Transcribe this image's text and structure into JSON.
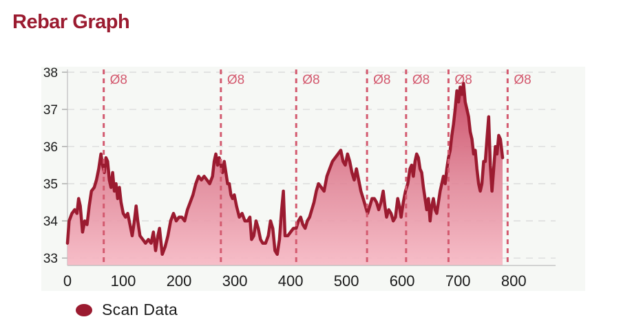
{
  "title": "Rebar Graph",
  "chart_data": {
    "type": "area",
    "xlim": [
      0,
      875
    ],
    "ylim": [
      32.8,
      38
    ],
    "yticks": [
      33,
      34,
      35,
      36,
      37,
      38
    ],
    "xticks": [
      0,
      100,
      200,
      300,
      400,
      500,
      600,
      700,
      800
    ],
    "grid": "horizontal-dashed",
    "legend_position": "bottom-left",
    "series": [
      {
        "name": "Scan Data",
        "color": "#9b1b30",
        "points": [
          [
            0,
            33.4
          ],
          [
            3,
            34.0
          ],
          [
            8,
            34.2
          ],
          [
            13,
            34.3
          ],
          [
            17,
            34.2
          ],
          [
            20,
            34.6
          ],
          [
            23,
            34.4
          ],
          [
            27,
            33.7
          ],
          [
            31,
            34.0
          ],
          [
            35,
            33.9
          ],
          [
            39,
            34.4
          ],
          [
            43,
            34.8
          ],
          [
            48,
            34.9
          ],
          [
            52,
            35.1
          ],
          [
            56,
            35.4
          ],
          [
            60,
            35.8
          ],
          [
            63,
            35.5
          ],
          [
            66,
            35.3
          ],
          [
            69,
            35.7
          ],
          [
            72,
            35.6
          ],
          [
            75,
            35.1
          ],
          [
            78,
            34.9
          ],
          [
            81,
            35.3
          ],
          [
            84,
            34.8
          ],
          [
            87,
            35.0
          ],
          [
            90,
            34.6
          ],
          [
            93,
            34.9
          ],
          [
            96,
            34.5
          ],
          [
            100,
            34.2
          ],
          [
            104,
            34.1
          ],
          [
            108,
            34.2
          ],
          [
            112,
            33.9
          ],
          [
            116,
            33.6
          ],
          [
            120,
            34.0
          ],
          [
            123,
            34.4
          ],
          [
            126,
            34.0
          ],
          [
            130,
            33.6
          ],
          [
            135,
            33.5
          ],
          [
            140,
            33.4
          ],
          [
            145,
            33.5
          ],
          [
            150,
            33.4
          ],
          [
            154,
            33.7
          ],
          [
            158,
            33.2
          ],
          [
            162,
            33.6
          ],
          [
            165,
            33.8
          ],
          [
            170,
            33.1
          ],
          [
            175,
            33.3
          ],
          [
            180,
            33.6
          ],
          [
            185,
            34.0
          ],
          [
            190,
            34.2
          ],
          [
            195,
            34.0
          ],
          [
            200,
            34.1
          ],
          [
            205,
            34.1
          ],
          [
            210,
            34.0
          ],
          [
            215,
            34.3
          ],
          [
            220,
            34.5
          ],
          [
            225,
            34.7
          ],
          [
            230,
            35.0
          ],
          [
            235,
            35.2
          ],
          [
            240,
            35.1
          ],
          [
            245,
            35.2
          ],
          [
            250,
            35.1
          ],
          [
            255,
            35.0
          ],
          [
            260,
            35.2
          ],
          [
            263,
            35.6
          ],
          [
            266,
            35.8
          ],
          [
            269,
            35.5
          ],
          [
            272,
            35.7
          ],
          [
            275,
            35.5
          ],
          [
            278,
            35.3
          ],
          [
            281,
            35.6
          ],
          [
            284,
            35.3
          ],
          [
            287,
            35.0
          ],
          [
            290,
            35.0
          ],
          [
            293,
            34.7
          ],
          [
            296,
            34.6
          ],
          [
            299,
            34.7
          ],
          [
            303,
            34.4
          ],
          [
            308,
            34.1
          ],
          [
            313,
            34.2
          ],
          [
            318,
            34.0
          ],
          [
            323,
            34.0
          ],
          [
            327,
            34.1
          ],
          [
            330,
            33.5
          ],
          [
            334,
            33.6
          ],
          [
            338,
            34.0
          ],
          [
            342,
            33.8
          ],
          [
            346,
            33.5
          ],
          [
            350,
            33.4
          ],
          [
            355,
            33.4
          ],
          [
            360,
            33.6
          ],
          [
            364,
            34.0
          ],
          [
            368,
            33.8
          ],
          [
            372,
            33.2
          ],
          [
            376,
            33.1
          ],
          [
            380,
            33.5
          ],
          [
            384,
            34.3
          ],
          [
            387,
            34.8
          ],
          [
            390,
            33.6
          ],
          [
            395,
            33.6
          ],
          [
            400,
            33.7
          ],
          [
            405,
            33.8
          ],
          [
            410,
            33.8
          ],
          [
            414,
            34.0
          ],
          [
            418,
            34.1
          ],
          [
            422,
            33.9
          ],
          [
            426,
            33.8
          ],
          [
            430,
            34.0
          ],
          [
            434,
            34.1
          ],
          [
            438,
            34.3
          ],
          [
            442,
            34.5
          ],
          [
            446,
            34.8
          ],
          [
            450,
            35.0
          ],
          [
            455,
            34.9
          ],
          [
            460,
            34.8
          ],
          [
            465,
            35.2
          ],
          [
            470,
            35.4
          ],
          [
            475,
            35.6
          ],
          [
            480,
            35.7
          ],
          [
            485,
            35.8
          ],
          [
            490,
            35.9
          ],
          [
            494,
            35.6
          ],
          [
            498,
            35.5
          ],
          [
            502,
            35.8
          ],
          [
            506,
            35.6
          ],
          [
            510,
            35.3
          ],
          [
            514,
            35.1
          ],
          [
            518,
            35.4
          ],
          [
            522,
            35.1
          ],
          [
            526,
            34.8
          ],
          [
            530,
            34.6
          ],
          [
            534,
            34.4
          ],
          [
            538,
            34.2
          ],
          [
            542,
            34.4
          ],
          [
            546,
            34.6
          ],
          [
            550,
            34.6
          ],
          [
            554,
            34.5
          ],
          [
            558,
            34.3
          ],
          [
            562,
            34.5
          ],
          [
            566,
            34.8
          ],
          [
            569,
            34.4
          ],
          [
            572,
            34.1
          ],
          [
            576,
            34.3
          ],
          [
            580,
            34.2
          ],
          [
            584,
            34.0
          ],
          [
            588,
            34.1
          ],
          [
            592,
            34.6
          ],
          [
            595,
            34.4
          ],
          [
            598,
            34.1
          ],
          [
            602,
            34.5
          ],
          [
            606,
            34.8
          ],
          [
            610,
            35.0
          ],
          [
            614,
            35.4
          ],
          [
            617,
            35.5
          ],
          [
            620,
            35.2
          ],
          [
            623,
            35.6
          ],
          [
            626,
            35.8
          ],
          [
            629,
            35.7
          ],
          [
            632,
            35.4
          ],
          [
            635,
            35.3
          ],
          [
            638,
            34.9
          ],
          [
            641,
            34.6
          ],
          [
            644,
            34.3
          ],
          [
            647,
            34.6
          ],
          [
            650,
            34.0
          ],
          [
            653,
            34.4
          ],
          [
            656,
            34.6
          ],
          [
            659,
            34.3
          ],
          [
            662,
            34.2
          ],
          [
            665,
            34.5
          ],
          [
            668,
            34.8
          ],
          [
            671,
            35.0
          ],
          [
            674,
            35.2
          ],
          [
            677,
            35.0
          ],
          [
            680,
            35.4
          ],
          [
            683,
            35.7
          ],
          [
            686,
            35.9
          ],
          [
            689,
            36.3
          ],
          [
            692,
            36.6
          ],
          [
            695,
            37.0
          ],
          [
            698,
            37.5
          ],
          [
            701,
            37.2
          ],
          [
            704,
            37.6
          ],
          [
            707,
            37.4
          ],
          [
            710,
            37.7
          ],
          [
            713,
            37.2
          ],
          [
            716,
            37.0
          ],
          [
            719,
            36.8
          ],
          [
            722,
            36.4
          ],
          [
            725,
            36.2
          ],
          [
            728,
            35.8
          ],
          [
            731,
            35.9
          ],
          [
            734,
            35.4
          ],
          [
            737,
            35.0
          ],
          [
            740,
            34.8
          ],
          [
            743,
            35.0
          ],
          [
            746,
            35.6
          ],
          [
            749,
            35.6
          ],
          [
            752,
            36.2
          ],
          [
            755,
            36.8
          ],
          [
            758,
            35.5
          ],
          [
            761,
            34.8
          ],
          [
            764,
            35.4
          ],
          [
            767,
            36.0
          ],
          [
            770,
            35.8
          ],
          [
            773,
            36.3
          ],
          [
            776,
            36.2
          ],
          [
            780,
            35.7
          ]
        ]
      }
    ],
    "markers": [
      {
        "x": 65,
        "label": "Ø8"
      },
      {
        "x": 275,
        "label": "Ø8"
      },
      {
        "x": 410,
        "label": "Ø8"
      },
      {
        "x": 537,
        "label": "Ø8"
      },
      {
        "x": 607,
        "label": "Ø8"
      },
      {
        "x": 683,
        "label": "Ø8"
      },
      {
        "x": 789,
        "label": "Ø8"
      }
    ],
    "marker_color": "#d35a6f"
  }
}
